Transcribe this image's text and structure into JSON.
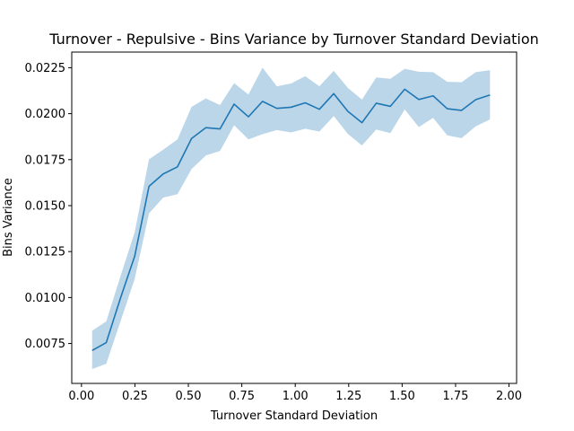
{
  "chart_data": {
    "type": "line",
    "title": "Turnover - Repulsive - Bins Variance by Turnover Standard Deviation",
    "xlabel": "Turnover Standard Deviation",
    "ylabel": "Bins Variance",
    "xlim": [
      -0.0455,
      2.0355
    ],
    "ylim": [
      0.00533,
      0.02335
    ],
    "x_ticks": [
      0.0,
      0.25,
      0.5,
      0.75,
      1.0,
      1.25,
      1.5,
      1.75,
      2.0
    ],
    "x_tick_labels": [
      "0.00",
      "0.25",
      "0.50",
      "0.75",
      "1.00",
      "1.25",
      "1.50",
      "1.75",
      "2.00"
    ],
    "y_ticks": [
      0.0075,
      0.01,
      0.0125,
      0.015,
      0.0175,
      0.02,
      0.0225
    ],
    "y_tick_labels": [
      "0.0075",
      "0.0100",
      "0.0125",
      "0.0150",
      "0.0175",
      "0.0200",
      "0.0225"
    ],
    "grid": false,
    "line_color": "#1f77b4",
    "band_color": "#1f77b4",
    "series": [
      {
        "x": [
          0.05,
          0.116,
          0.183,
          0.249,
          0.316,
          0.382,
          0.449,
          0.515,
          0.582,
          0.648,
          0.714,
          0.781,
          0.847,
          0.914,
          0.98,
          1.047,
          1.113,
          1.18,
          1.246,
          1.312,
          1.379,
          1.445,
          1.512,
          1.578,
          1.645,
          1.711,
          1.778,
          1.844,
          1.911
        ],
        "y": [
          0.00712,
          0.00755,
          0.00999,
          0.01225,
          0.01605,
          0.01672,
          0.01711,
          0.01865,
          0.01924,
          0.01917,
          0.02052,
          0.01983,
          0.02067,
          0.02029,
          0.02035,
          0.02059,
          0.02024,
          0.02109,
          0.02013,
          0.01951,
          0.02057,
          0.0204,
          0.02133,
          0.02077,
          0.02097,
          0.02027,
          0.02018,
          0.02076,
          0.02102
        ],
        "lower": [
          0.00611,
          0.0064,
          0.00872,
          0.01102,
          0.01458,
          0.01543,
          0.01562,
          0.01699,
          0.01773,
          0.01797,
          0.01937,
          0.0186,
          0.01889,
          0.01911,
          0.01898,
          0.01918,
          0.01903,
          0.01987,
          0.0189,
          0.01827,
          0.01914,
          0.01894,
          0.02023,
          0.01927,
          0.01977,
          0.01882,
          0.01867,
          0.01931,
          0.01969
        ],
        "upper": [
          0.0082,
          0.0087,
          0.01118,
          0.01355,
          0.01752,
          0.01804,
          0.0186,
          0.02037,
          0.02083,
          0.02047,
          0.02166,
          0.02104,
          0.0225,
          0.02149,
          0.02164,
          0.02204,
          0.02149,
          0.02233,
          0.0214,
          0.02077,
          0.02197,
          0.0219,
          0.02244,
          0.02228,
          0.02226,
          0.02173,
          0.02171,
          0.02226,
          0.02237
        ]
      }
    ]
  }
}
